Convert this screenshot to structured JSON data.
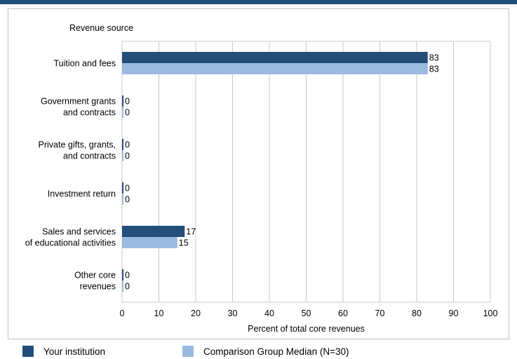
{
  "chart_data": {
    "type": "bar",
    "orientation": "horizontal",
    "title": "Revenue source",
    "xlabel": "Percent of total core revenues",
    "xlim": [
      0,
      100
    ],
    "xticks": [
      0,
      10,
      20,
      30,
      40,
      50,
      60,
      70,
      80,
      90,
      100
    ],
    "grid": true,
    "legend_position": "bottom",
    "categories": [
      [
        "Tuition and fees"
      ],
      [
        "Government grants",
        "and contracts"
      ],
      [
        "Private gifts, grants,",
        "and contracts"
      ],
      [
        "Investment return"
      ],
      [
        "Sales and services",
        "of educational activities"
      ],
      [
        "Other core",
        "revenues"
      ]
    ],
    "series": [
      {
        "name": "Your institution",
        "color": "#244e7a",
        "values": [
          83,
          0,
          0,
          0,
          17,
          0
        ]
      },
      {
        "name": "Comparison Group Median (N=30)",
        "color": "#9ab9df",
        "values": [
          83,
          0,
          0,
          0,
          15,
          0
        ]
      }
    ]
  }
}
